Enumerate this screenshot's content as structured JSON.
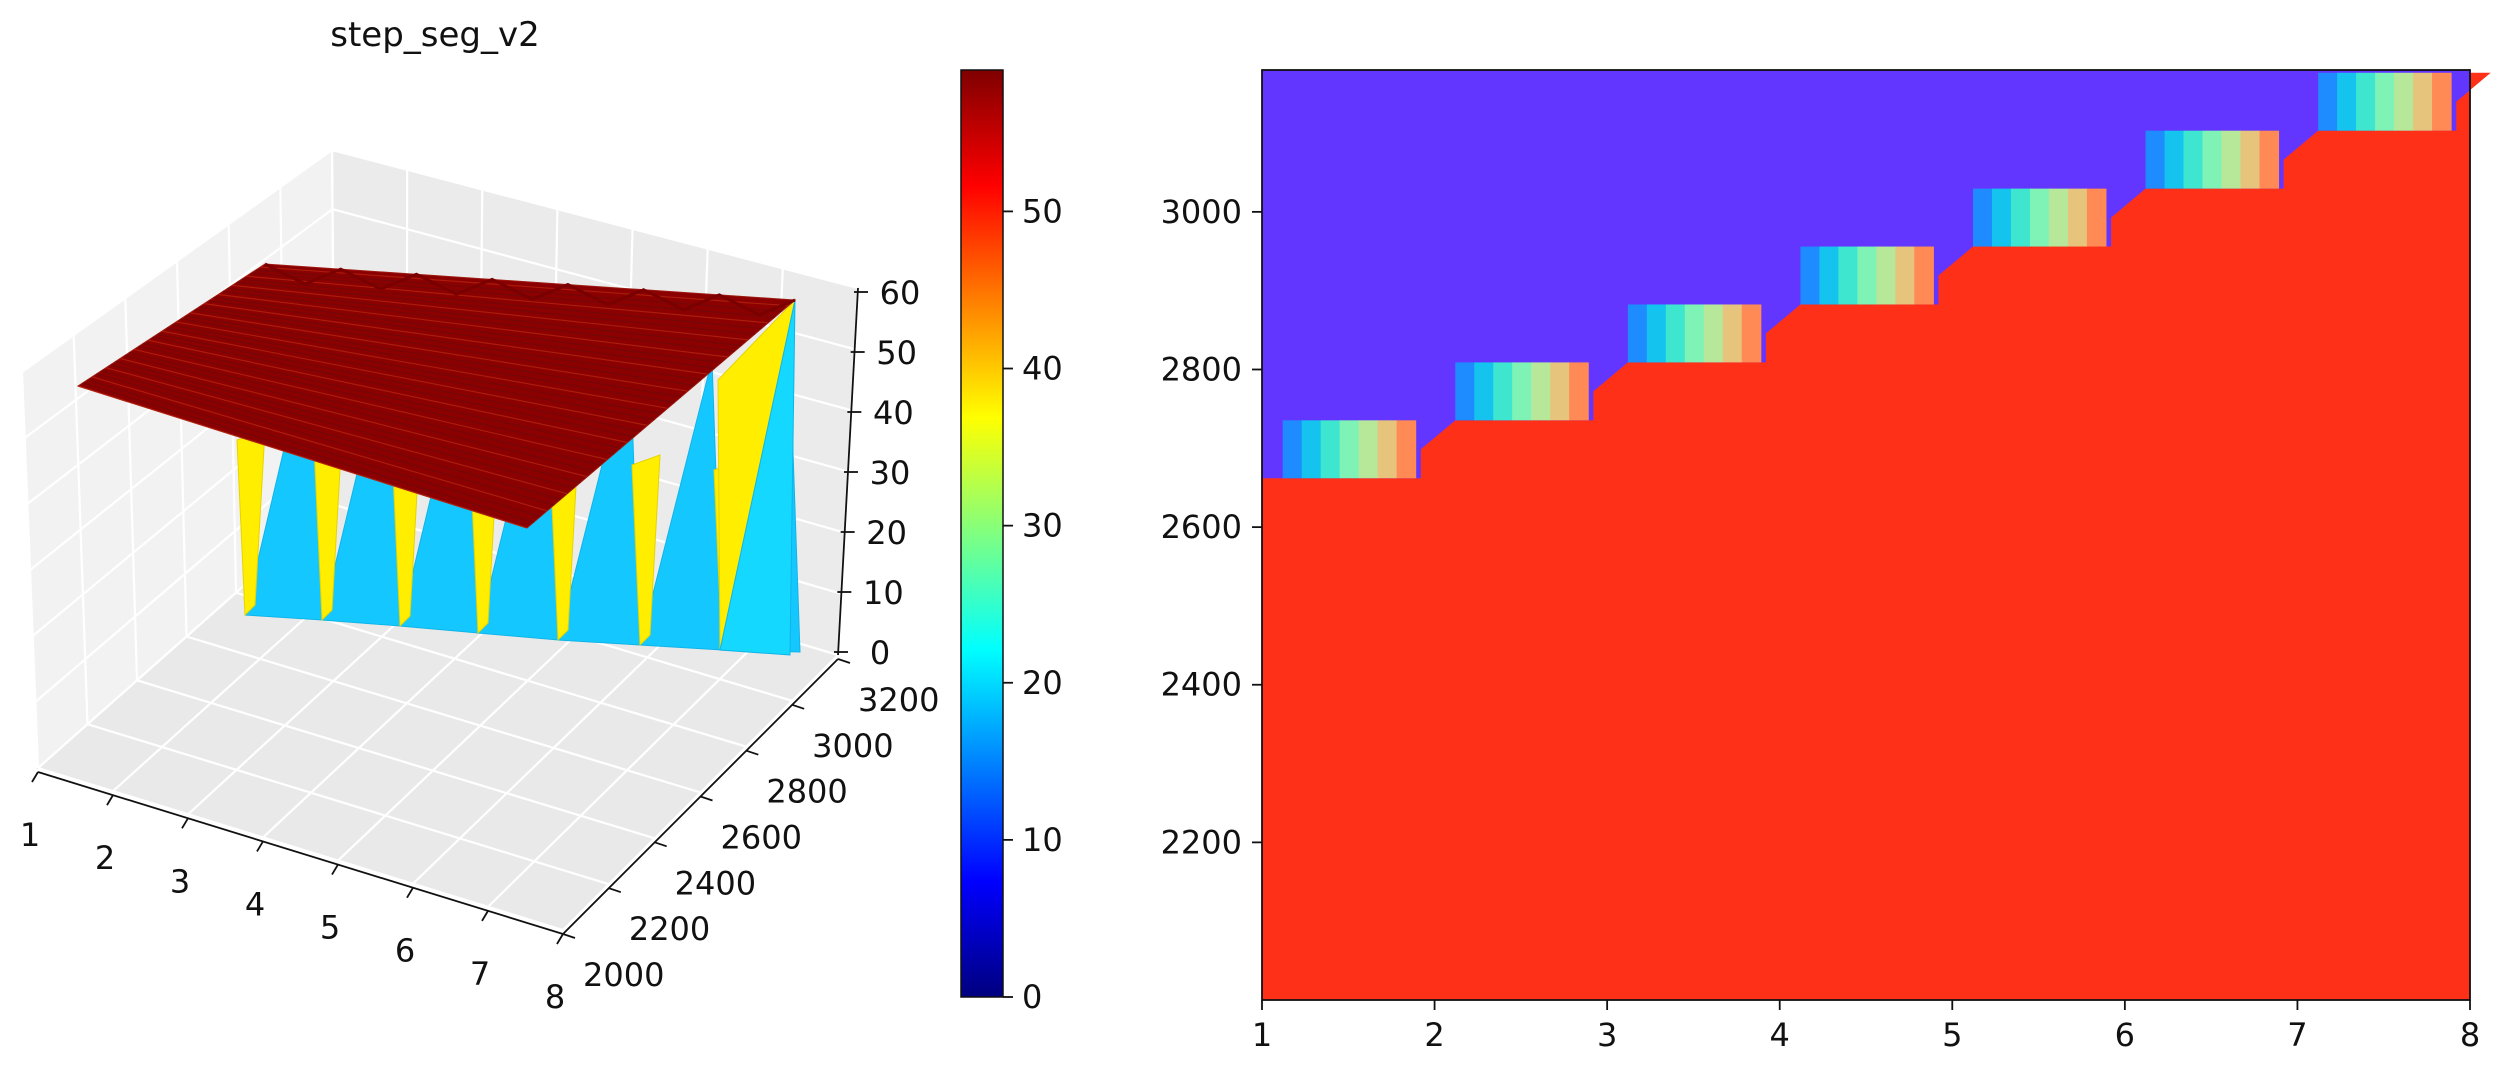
{
  "chart_data": [
    {
      "type": "surface3d",
      "title": "step_seg_v2",
      "xlabel": "",
      "ylabel": "",
      "zlabel": "",
      "x_ticks": [
        "1",
        "2",
        "3",
        "4",
        "5",
        "6",
        "7",
        "8"
      ],
      "y_ticks": [
        "2000",
        "2200",
        "2400",
        "2600",
        "2800",
        "3000",
        "3200"
      ],
      "z_ticks": [
        "0",
        "10",
        "20",
        "30",
        "40",
        "50",
        "60"
      ],
      "xlim": [
        1,
        8
      ],
      "ylim": [
        2000,
        3200
      ],
      "zlim": [
        0,
        60
      ],
      "grid": true,
      "colormap": "jet",
      "colorbar": {
        "min": 0,
        "max": 59,
        "ticks": [
          "0",
          "10",
          "20",
          "30",
          "40",
          "50"
        ],
        "stops": [
          "#00007f",
          "#0000ff",
          "#0080ff",
          "#00ffff",
          "#80ff80",
          "#ffff00",
          "#ff8000",
          "#ff0000",
          "#7f0000"
        ]
      },
      "plateau_value": 58,
      "step_top_value": 40,
      "step_bottom_value": 15
    },
    {
      "type": "heatmap",
      "xlabel": "",
      "ylabel": "",
      "x_ticks": [
        "1",
        "2",
        "3",
        "4",
        "5",
        "6",
        "7",
        "8"
      ],
      "y_ticks": [
        "2200",
        "2400",
        "2600",
        "2800",
        "3000"
      ],
      "xlim": [
        1,
        8
      ],
      "ylim": [
        2000,
        3180
      ],
      "colors": {
        "above": "#6236ff",
        "below": "#ff3018"
      },
      "boundary_start": 2662,
      "boundary_step": 73.5,
      "segment_width": 0.82,
      "transition_colors": [
        "#1e8cff",
        "#14c4ee",
        "#3ee6cf",
        "#7ff2b6",
        "#b7e89a",
        "#e6c47c",
        "#ff8a55"
      ]
    }
  ]
}
